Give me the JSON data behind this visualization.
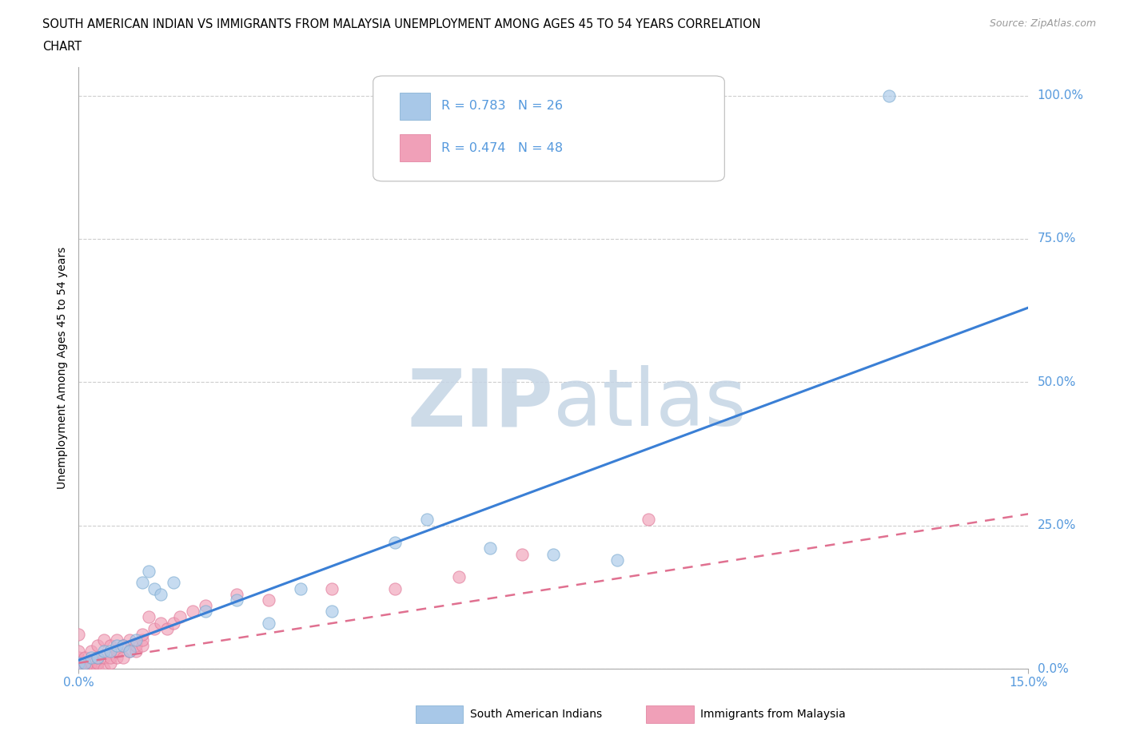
{
  "title_line1": "SOUTH AMERICAN INDIAN VS IMMIGRANTS FROM MALAYSIA UNEMPLOYMENT AMONG AGES 45 TO 54 YEARS CORRELATION",
  "title_line2": "CHART",
  "source_text": "Source: ZipAtlas.com",
  "ylabel": "Unemployment Among Ages 45 to 54 years",
  "xlim": [
    0.0,
    0.15
  ],
  "ylim": [
    0.0,
    1.05
  ],
  "xtick_vals": [
    0.0,
    0.15
  ],
  "xtick_labels": [
    "0.0%",
    "15.0%"
  ],
  "ytick_vals": [
    0.0,
    0.25,
    0.5,
    0.75,
    1.0
  ],
  "ytick_labels": [
    "0.0%",
    "25.0%",
    "50.0%",
    "75.0%",
    "100.0%"
  ],
  "grid_color": "#c8c8c8",
  "background_color": "#ffffff",
  "watermark_zip_color": "#c5d5e5",
  "watermark_atlas_color": "#c5d5e5",
  "blue_R": 0.783,
  "blue_N": 26,
  "pink_R": 0.474,
  "pink_N": 48,
  "blue_color": "#a8c8e8",
  "pink_color": "#f0a0b8",
  "blue_edge_color": "#7aaad0",
  "pink_edge_color": "#e07898",
  "blue_line_color": "#3a7fd5",
  "pink_line_color": "#e07090",
  "tick_color": "#5599dd",
  "label_color": "#5599dd",
  "blue_scatter_x": [
    0.0,
    0.001,
    0.002,
    0.003,
    0.004,
    0.005,
    0.006,
    0.007,
    0.008,
    0.009,
    0.01,
    0.011,
    0.012,
    0.013,
    0.015,
    0.02,
    0.025,
    0.03,
    0.035,
    0.04,
    0.05,
    0.055,
    0.065,
    0.075,
    0.085,
    0.128
  ],
  "blue_scatter_y": [
    0.01,
    0.01,
    0.02,
    0.02,
    0.03,
    0.03,
    0.04,
    0.04,
    0.03,
    0.05,
    0.15,
    0.17,
    0.14,
    0.13,
    0.15,
    0.1,
    0.12,
    0.08,
    0.14,
    0.1,
    0.22,
    0.26,
    0.21,
    0.2,
    0.19,
    1.0
  ],
  "pink_scatter_x": [
    0.0,
    0.0,
    0.0,
    0.0,
    0.0,
    0.001,
    0.001,
    0.001,
    0.002,
    0.002,
    0.002,
    0.003,
    0.003,
    0.003,
    0.003,
    0.004,
    0.004,
    0.004,
    0.005,
    0.005,
    0.005,
    0.006,
    0.006,
    0.006,
    0.007,
    0.007,
    0.008,
    0.008,
    0.009,
    0.009,
    0.01,
    0.01,
    0.01,
    0.011,
    0.012,
    0.013,
    0.014,
    0.015,
    0.016,
    0.018,
    0.02,
    0.025,
    0.03,
    0.04,
    0.05,
    0.06,
    0.07,
    0.09
  ],
  "pink_scatter_y": [
    0.0,
    0.01,
    0.02,
    0.03,
    0.06,
    0.0,
    0.01,
    0.02,
    0.0,
    0.01,
    0.03,
    0.0,
    0.01,
    0.02,
    0.04,
    0.0,
    0.02,
    0.05,
    0.01,
    0.02,
    0.04,
    0.02,
    0.03,
    0.05,
    0.02,
    0.04,
    0.03,
    0.05,
    0.03,
    0.04,
    0.04,
    0.05,
    0.06,
    0.09,
    0.07,
    0.08,
    0.07,
    0.08,
    0.09,
    0.1,
    0.11,
    0.13,
    0.12,
    0.14,
    0.14,
    0.16,
    0.2,
    0.26
  ],
  "blue_trendline_x": [
    0.0,
    0.15
  ],
  "blue_trendline_y": [
    0.015,
    0.63
  ],
  "pink_trendline_x": [
    0.0,
    0.15
  ],
  "pink_trendline_y": [
    0.01,
    0.27
  ],
  "legend_label_blue": "South American Indians",
  "legend_label_pink": "Immigrants from Malaysia"
}
